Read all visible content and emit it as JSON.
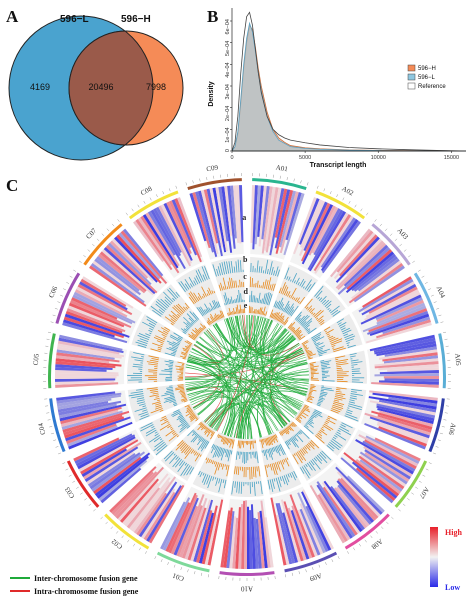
{
  "panels": {
    "a": "A",
    "b": "B",
    "c": "C"
  },
  "venn": {
    "left_label": "596−L",
    "right_label": "596−H",
    "left_only": "4169",
    "overlap": "20496",
    "right_only": "7998",
    "left_color": "#4aa3cf",
    "right_color": "#f58b57",
    "overlap_color": "#9a5a4a"
  },
  "density": {
    "ylabel": "Density",
    "xlabel": "Transcript length",
    "xticks": [
      "0",
      "5000",
      "10000",
      "15000"
    ],
    "yticks": [
      "0",
      "1e−04",
      "2e−04",
      "3e−04",
      "4e−04",
      "5e−04",
      "6e−04"
    ],
    "legend": [
      {
        "name": "596−H",
        "color": "#f58b57"
      },
      {
        "name": "596−L",
        "color": "#8ec7e0"
      },
      {
        "name": "Reference",
        "color": "#ffffff"
      }
    ]
  },
  "chart_data": {
    "type": "area",
    "xlabel": "Transcript length",
    "ylabel": "Density",
    "xlim": [
      0,
      16000
    ],
    "ylim": [
      0,
      0.00066
    ],
    "x": [
      0,
      200,
      400,
      600,
      800,
      1000,
      1200,
      1400,
      1600,
      1800,
      2000,
      2400,
      2800,
      3200,
      3600,
      4000,
      5000,
      6000,
      8000,
      10000,
      12000,
      14000,
      16000
    ],
    "series": [
      {
        "name": "596−H",
        "values": [
          0,
          2e-05,
          8e-05,
          0.00022,
          0.00038,
          0.0005,
          0.00058,
          0.00056,
          0.00048,
          0.00038,
          0.0003,
          0.00018,
          0.0001,
          6e-05,
          4e-05,
          2.5e-05,
          1.5e-05,
          1e-05,
          5e-06,
          3e-06,
          2e-06,
          1e-06,
          0
        ]
      },
      {
        "name": "596−L",
        "values": [
          0,
          2e-05,
          9e-05,
          0.00024,
          0.0004,
          0.00052,
          0.00059,
          0.00055,
          0.00046,
          0.00036,
          0.00028,
          0.00016,
          9e-05,
          5e-05,
          3.5e-05,
          2e-05,
          1.2e-05,
          8e-06,
          4e-06,
          2e-06,
          1e-06,
          1e-06,
          0
        ]
      },
      {
        "name": "Reference",
        "values": [
          0,
          4e-05,
          0.00016,
          0.00036,
          0.00052,
          0.00062,
          0.00064,
          0.00058,
          0.00047,
          0.00036,
          0.00027,
          0.00016,
          0.0001,
          7.5e-05,
          6e-05,
          5e-05,
          3.8e-05,
          2.8e-05,
          1.6e-05,
          1e-05,
          6e-06,
          3e-06,
          0
        ]
      }
    ]
  },
  "circos": {
    "chromosomes": [
      "A01",
      "A02",
      "A03",
      "A04",
      "A05",
      "A06",
      "A07",
      "A08",
      "A09",
      "A10",
      "C01",
      "C02",
      "C03",
      "C04",
      "C05",
      "C06",
      "C07",
      "C08",
      "C09"
    ],
    "chr_colors": [
      "#2ab58f",
      "#f2e23a",
      "#b7a6d6",
      "#6fb7e3",
      "#5aaed6",
      "#2f3fa7",
      "#8fd14f",
      "#e24ea0",
      "#5b4fb3",
      "#b34fb3",
      "#7ed99a",
      "#f2e23a",
      "#e02a2a",
      "#2f7ad1",
      "#3fb54f",
      "#9b4fb3",
      "#f28a1a",
      "#f2e23a",
      "#a0522d"
    ],
    "track_letters": [
      "a",
      "b",
      "c",
      "d",
      "e"
    ],
    "heat_high": "High",
    "heat_low": "Low",
    "high_color": "#e8202a",
    "low_color": "#2a2ae8"
  },
  "fusion_legend": [
    {
      "label": "Inter-chromosome fusion gene",
      "color": "#1faa3a"
    },
    {
      "label": "Intra-chromosome fusion gene",
      "color": "#e02a2a"
    }
  ]
}
